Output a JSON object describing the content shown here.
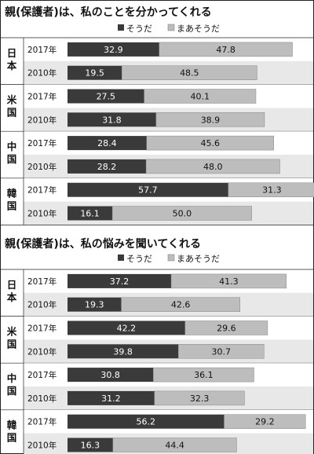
{
  "chart_data": [
    {
      "type": "bar",
      "stacked": true,
      "orientation": "horizontal",
      "title": "親(保護者)は、私のことを分かってくれる",
      "legend": [
        "そうだ",
        "まあそうだ"
      ],
      "legend_position": "top-right",
      "groups": [
        {
          "label": "日本",
          "rows": [
            {
              "year": "2017年",
              "values": [
                32.9,
                47.8
              ]
            },
            {
              "year": "2010年",
              "values": [
                19.5,
                48.5
              ]
            }
          ]
        },
        {
          "label": "米国",
          "rows": [
            {
              "year": "2017年",
              "values": [
                27.5,
                40.1
              ]
            },
            {
              "year": "2010年",
              "values": [
                31.8,
                38.9
              ]
            }
          ]
        },
        {
          "label": "中国",
          "rows": [
            {
              "year": "2017年",
              "values": [
                28.4,
                45.6
              ]
            },
            {
              "year": "2010年",
              "values": [
                28.2,
                48.0
              ]
            }
          ]
        },
        {
          "label": "韓国",
          "rows": [
            {
              "year": "2017年",
              "values": [
                57.7,
                31.3
              ]
            },
            {
              "year": "2010年",
              "values": [
                16.1,
                50.0
              ]
            }
          ]
        }
      ]
    },
    {
      "type": "bar",
      "stacked": true,
      "orientation": "horizontal",
      "title": "親(保護者)は、私の悩みを聞いてくれる",
      "legend": [
        "そうだ",
        "まあそうだ"
      ],
      "legend_position": "top-right",
      "groups": [
        {
          "label": "日本",
          "rows": [
            {
              "year": "2017年",
              "values": [
                37.2,
                41.3
              ]
            },
            {
              "year": "2010年",
              "values": [
                19.3,
                42.6
              ]
            }
          ]
        },
        {
          "label": "米国",
          "rows": [
            {
              "year": "2017年",
              "values": [
                42.2,
                29.6
              ]
            },
            {
              "year": "2010年",
              "values": [
                39.8,
                30.7
              ]
            }
          ]
        },
        {
          "label": "中国",
          "rows": [
            {
              "year": "2017年",
              "values": [
                30.8,
                36.1
              ]
            },
            {
              "year": "2010年",
              "values": [
                31.2,
                32.3
              ]
            }
          ]
        },
        {
          "label": "韓国",
          "rows": [
            {
              "year": "2017年",
              "values": [
                56.2,
                29.2
              ]
            },
            {
              "year": "2010年",
              "values": [
                16.3,
                44.4
              ]
            }
          ]
        }
      ]
    }
  ],
  "colors": {
    "sou_da": "#3a3a3a",
    "maa_sou_da": "#bdbdbd",
    "row_even": "#ffffff",
    "row_odd": "#e8e8e8",
    "border": "#222222"
  }
}
